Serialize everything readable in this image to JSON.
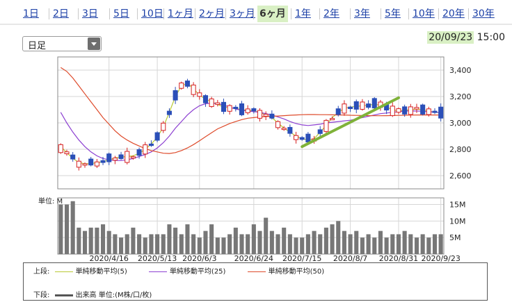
{
  "period_tabs": [
    {
      "label": "1日",
      "active": false
    },
    {
      "label": "2日",
      "active": false
    },
    {
      "label": "3日",
      "active": false
    },
    {
      "label": "5日",
      "active": false
    },
    {
      "label": "10日",
      "active": false
    },
    {
      "label": "1ヶ月",
      "active": false
    },
    {
      "label": "2ヶ月",
      "active": false
    },
    {
      "label": "3ヶ月",
      "active": false
    },
    {
      "label": "6ヶ月",
      "active": true
    },
    {
      "label": "1年",
      "active": false
    },
    {
      "label": "2年",
      "active": false
    },
    {
      "label": "3年",
      "active": false
    },
    {
      "label": "5年",
      "active": false
    },
    {
      "label": "10年",
      "active": false
    },
    {
      "label": "20年",
      "active": false
    },
    {
      "label": "30年",
      "active": false
    }
  ],
  "interval_select": {
    "value": "日足"
  },
  "timestamp": {
    "date": "20/09/23",
    "time": "15:00"
  },
  "colors": {
    "accent_bg": "#d9f0c4",
    "up": "#d62020",
    "down": "#2b4fb8",
    "ma5": "#b9c934",
    "ma25": "#8c3fd1",
    "ma50": "#de4a2a",
    "trendline": "#7fb239",
    "volume": "#777777"
  },
  "chart_data": [
    {
      "type": "candlestick",
      "y_ticks": [
        "3,400",
        "3,200",
        "3,000",
        "2,800",
        "2,600"
      ],
      "ylim": [
        2500,
        3500
      ],
      "x_ticks": [
        "2020/4/16",
        "2020/5/13",
        "2020/6/3",
        "2020/6/24",
        "2020/7/15",
        "2020/8/7",
        "2020/8/31",
        "2020/9/23"
      ],
      "series": [
        {
          "name": "単純移動平均(5)",
          "values": [
            2820,
            2775,
            2730,
            2700,
            2690,
            2690,
            2700,
            2705,
            2720,
            2735,
            2740,
            2745,
            2750,
            2770,
            2800,
            2840,
            2890,
            2970,
            3080,
            3200,
            3280,
            3300,
            3260,
            3210,
            3180,
            3160,
            3140,
            3120,
            3115,
            3110,
            3100,
            3095,
            3090,
            3080,
            3060,
            3040,
            3000,
            2960,
            2930,
            2900,
            2880,
            2870,
            2880,
            2930,
            2980,
            3040,
            3080,
            3110,
            3120,
            3125,
            3130,
            3135,
            3140,
            3135,
            3120,
            3100,
            3090,
            3095,
            3100,
            3105,
            3100,
            3090,
            3080,
            3075
          ]
        },
        {
          "name": "単純移動平均(25)",
          "values": [
            3080,
            3000,
            2930,
            2870,
            2820,
            2780,
            2750,
            2730,
            2720,
            2715,
            2715,
            2720,
            2730,
            2745,
            2760,
            2780,
            2810,
            2850,
            2900,
            2960,
            3010,
            3060,
            3100,
            3130,
            3145,
            3150,
            3145,
            3135,
            3120,
            3105,
            3095,
            3090,
            3085,
            3080,
            3070,
            3060,
            3045,
            3030,
            3010,
            2995,
            2985,
            2980,
            2985,
            2990,
            3000,
            3005,
            3010,
            3015,
            3020,
            3030,
            3040,
            3050,
            3060,
            3070,
            3075,
            3080,
            3085,
            3090,
            3090,
            3090,
            3088,
            3085,
            3080,
            3078
          ]
        },
        {
          "name": "単純移動平均(50)",
          "values": [
            3420,
            3390,
            3340,
            3280,
            3220,
            3160,
            3100,
            3040,
            2990,
            2940,
            2900,
            2870,
            2845,
            2825,
            2805,
            2790,
            2780,
            2770,
            2768,
            2775,
            2790,
            2810,
            2835,
            2865,
            2895,
            2925,
            2955,
            2975,
            2995,
            3010,
            3025,
            3035,
            3040,
            3045,
            3048,
            3050,
            3052,
            3055,
            3058,
            3060,
            3062,
            3063,
            3063,
            3062,
            3062,
            3061,
            3060,
            3060,
            3058,
            3057,
            3056,
            3055,
            3054,
            3054,
            3055,
            3056,
            3057,
            3058,
            3059,
            3060,
            3060,
            3060,
            3060,
            3060
          ]
        }
      ]
    },
    {
      "type": "bar",
      "title": "単位: M",
      "y_ticks": [
        "15M",
        "10M",
        "5M"
      ],
      "ylim": [
        0,
        17
      ],
      "x_ticks": [
        "2020/4/16",
        "2020/5/13",
        "2020/6/3",
        "2020/6/24",
        "2020/7/15",
        "2020/8/7",
        "2020/8/31",
        "2020/9/23"
      ],
      "series": [
        {
          "name": "出来高",
          "values": [
            15,
            15,
            16,
            8,
            7,
            8,
            8,
            9,
            7,
            6,
            5,
            6,
            8,
            6,
            5,
            6,
            6,
            6,
            9,
            8,
            6,
            9,
            6,
            5,
            7,
            9,
            5,
            5,
            6,
            8,
            6,
            6,
            9,
            7,
            11,
            7,
            6,
            8,
            6,
            5,
            5,
            6,
            7,
            6,
            8,
            9,
            10,
            7,
            6,
            7,
            5,
            6,
            5,
            7,
            5,
            6,
            6,
            7,
            6,
            5,
            6,
            5,
            6,
            6
          ]
        }
      ]
    }
  ],
  "legend": {
    "top_label": "上段:",
    "bottom_label": "下段:",
    "items": [
      "単純移動平均(5)",
      "単純移動平均(25)",
      "単純移動平均(50)"
    ],
    "volume_item": "出来高 単位:(M株/口/枚)"
  }
}
